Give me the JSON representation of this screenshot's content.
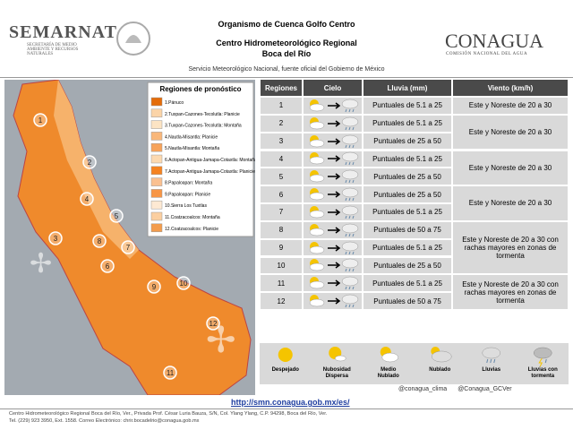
{
  "header": {
    "left_logo": "SEMARNAT",
    "left_subtitle": "SECRETARÍA DE MEDIO AMBIENTE Y RECURSOS NATURALES",
    "title_1": "Organismo de Cuenca Golfo Centro",
    "title_2": "Centro Hidrometeorológico Regional",
    "title_3": "Boca del Río",
    "subtitle": "Servicio Meteorológico Nacional, fuente oficial del Gobierno de México",
    "right_logo": "CONAGUA",
    "right_subtitle": "COMISIÓN NACIONAL DEL AGUA"
  },
  "map": {
    "legend_title": "Regiones de pronóstico",
    "regions": [
      "1.Pánuco",
      "2.Tuxpan-Cazones-Tecolutla: Planicie",
      "3.Tuxpan-Cazones-Tecolutla: Montaña",
      "4.Nautla-Misantla: Planicie",
      "5.Nautla-Misantla: Montaña",
      "6.Actopan-Antigua-Jamapa-Cotaxtla: Montaña",
      "7.Actopan-Antigua-Jamapa-Cotaxtla: Planicie",
      "8.Papaloapan: Montaña",
      "9.Papaloapan: Planicie",
      "10.Sierra Los Tuxtlas",
      "11.Coatzacoalcos: Montaña",
      "12.Coatzacoalcos: Planicie"
    ],
    "markers": [
      "1",
      "2",
      "3",
      "4",
      "5",
      "6",
      "7",
      "8",
      "9",
      "10",
      "11",
      "12"
    ]
  },
  "table": {
    "headers": [
      "Regiones",
      "Cielo",
      "Lluvia (mm)",
      "Viento (km/h)"
    ],
    "rows": [
      {
        "region": "1",
        "rain": "Puntuales de 5.1 a 25"
      },
      {
        "region": "2",
        "rain": "Puntuales de 5.1 a 25"
      },
      {
        "region": "3",
        "rain": "Puntuales de 25 a 50"
      },
      {
        "region": "4",
        "rain": "Puntuales de 5.1 a 25"
      },
      {
        "region": "5",
        "rain": "Puntuales de 25 a 50"
      },
      {
        "region": "6",
        "rain": "Puntuales de 25 a 50"
      },
      {
        "region": "7",
        "rain": "Puntuales de 5.1 a 25"
      },
      {
        "region": "8",
        "rain": "Puntuales de  50 a 75"
      },
      {
        "region": "9",
        "rain": "Puntuales de 5.1 a 25"
      },
      {
        "region": "10",
        "rain": "Puntuales de 25 a 50"
      },
      {
        "region": "11",
        "rain": "Puntuales de 5.1 a 25"
      },
      {
        "region": "12",
        "rain": "Puntuales de  50 a 75"
      }
    ],
    "wind": [
      "Este y Noreste de 20 a 30",
      "Este y Noreste de 20 a 30",
      "Este y Noreste de 20 a 30",
      "Este y Noreste de 20 a 30",
      "Este y Noreste de 20 a 30 con rachas mayores en zonas de tormenta",
      "Este y Noreste de 20 a 30 con rachas mayores en zonas de tormenta"
    ]
  },
  "icon_legend": [
    "Despejado",
    "Nubosidad Dispersa",
    "Medio Nublado",
    "Nublado",
    "Lluvias",
    "Lluvias con tormenta"
  ],
  "social": [
    "@conagua_clima",
    "@Conagua_GCVer"
  ],
  "url": "http://smn.conagua.gob.mx/es/",
  "footer": [
    "Centro Hidrometeorológico Regional Boca del Río, Ver., Privada Prof. César Luria Bauza, S/N, Col. Ylang Ylang, C.P. 94298, Boca del Río, Ver.",
    "Tel. (229) 923 3950, Ext. 1558. Correo Electrónico: chrir.bocadelrio@conagua.gob.mx"
  ]
}
